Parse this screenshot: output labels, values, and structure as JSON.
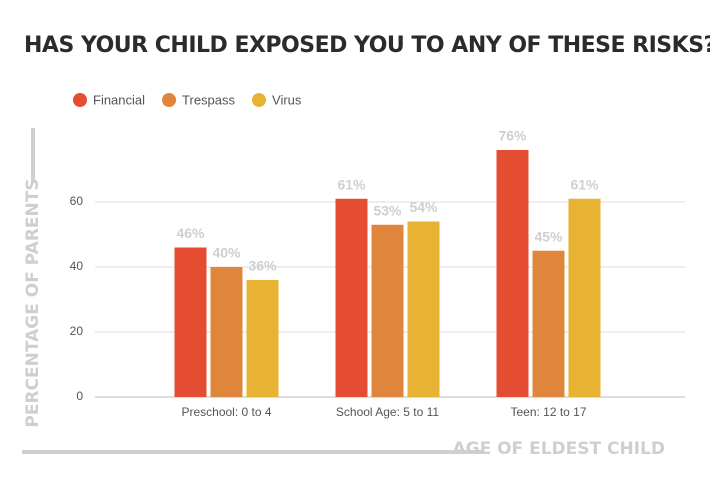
{
  "chart_data": {
    "type": "bar",
    "title": "HAS YOUR CHILD EXPOSED YOU TO ANY OF THESE RISKS?",
    "y_label": "PERCENTAGE OF PARENTS",
    "x_label": "AGE OF ELDEST CHILD",
    "categories": [
      "Preschool: 0 to 4",
      "School Age: 5 to 11",
      "Teen: 12 to 17"
    ],
    "series": [
      {
        "name": "Financial",
        "color": "#e44d32",
        "values": [
          46,
          61,
          76
        ],
        "value_labels": [
          "46%",
          "61%",
          "76%"
        ]
      },
      {
        "name": "Trespass",
        "color": "#e0853c",
        "values": [
          40,
          53,
          45
        ],
        "value_labels": [
          "40%",
          "53%",
          "45%"
        ]
      },
      {
        "name": "Virus",
        "color": "#e8b232",
        "values": [
          36,
          54,
          61
        ],
        "value_labels": [
          "36%",
          "54%",
          "61%"
        ]
      }
    ],
    "ylim": [
      0,
      80
    ],
    "yticks": [
      0,
      20,
      40,
      60
    ],
    "grid": true,
    "legend": "top-left"
  }
}
